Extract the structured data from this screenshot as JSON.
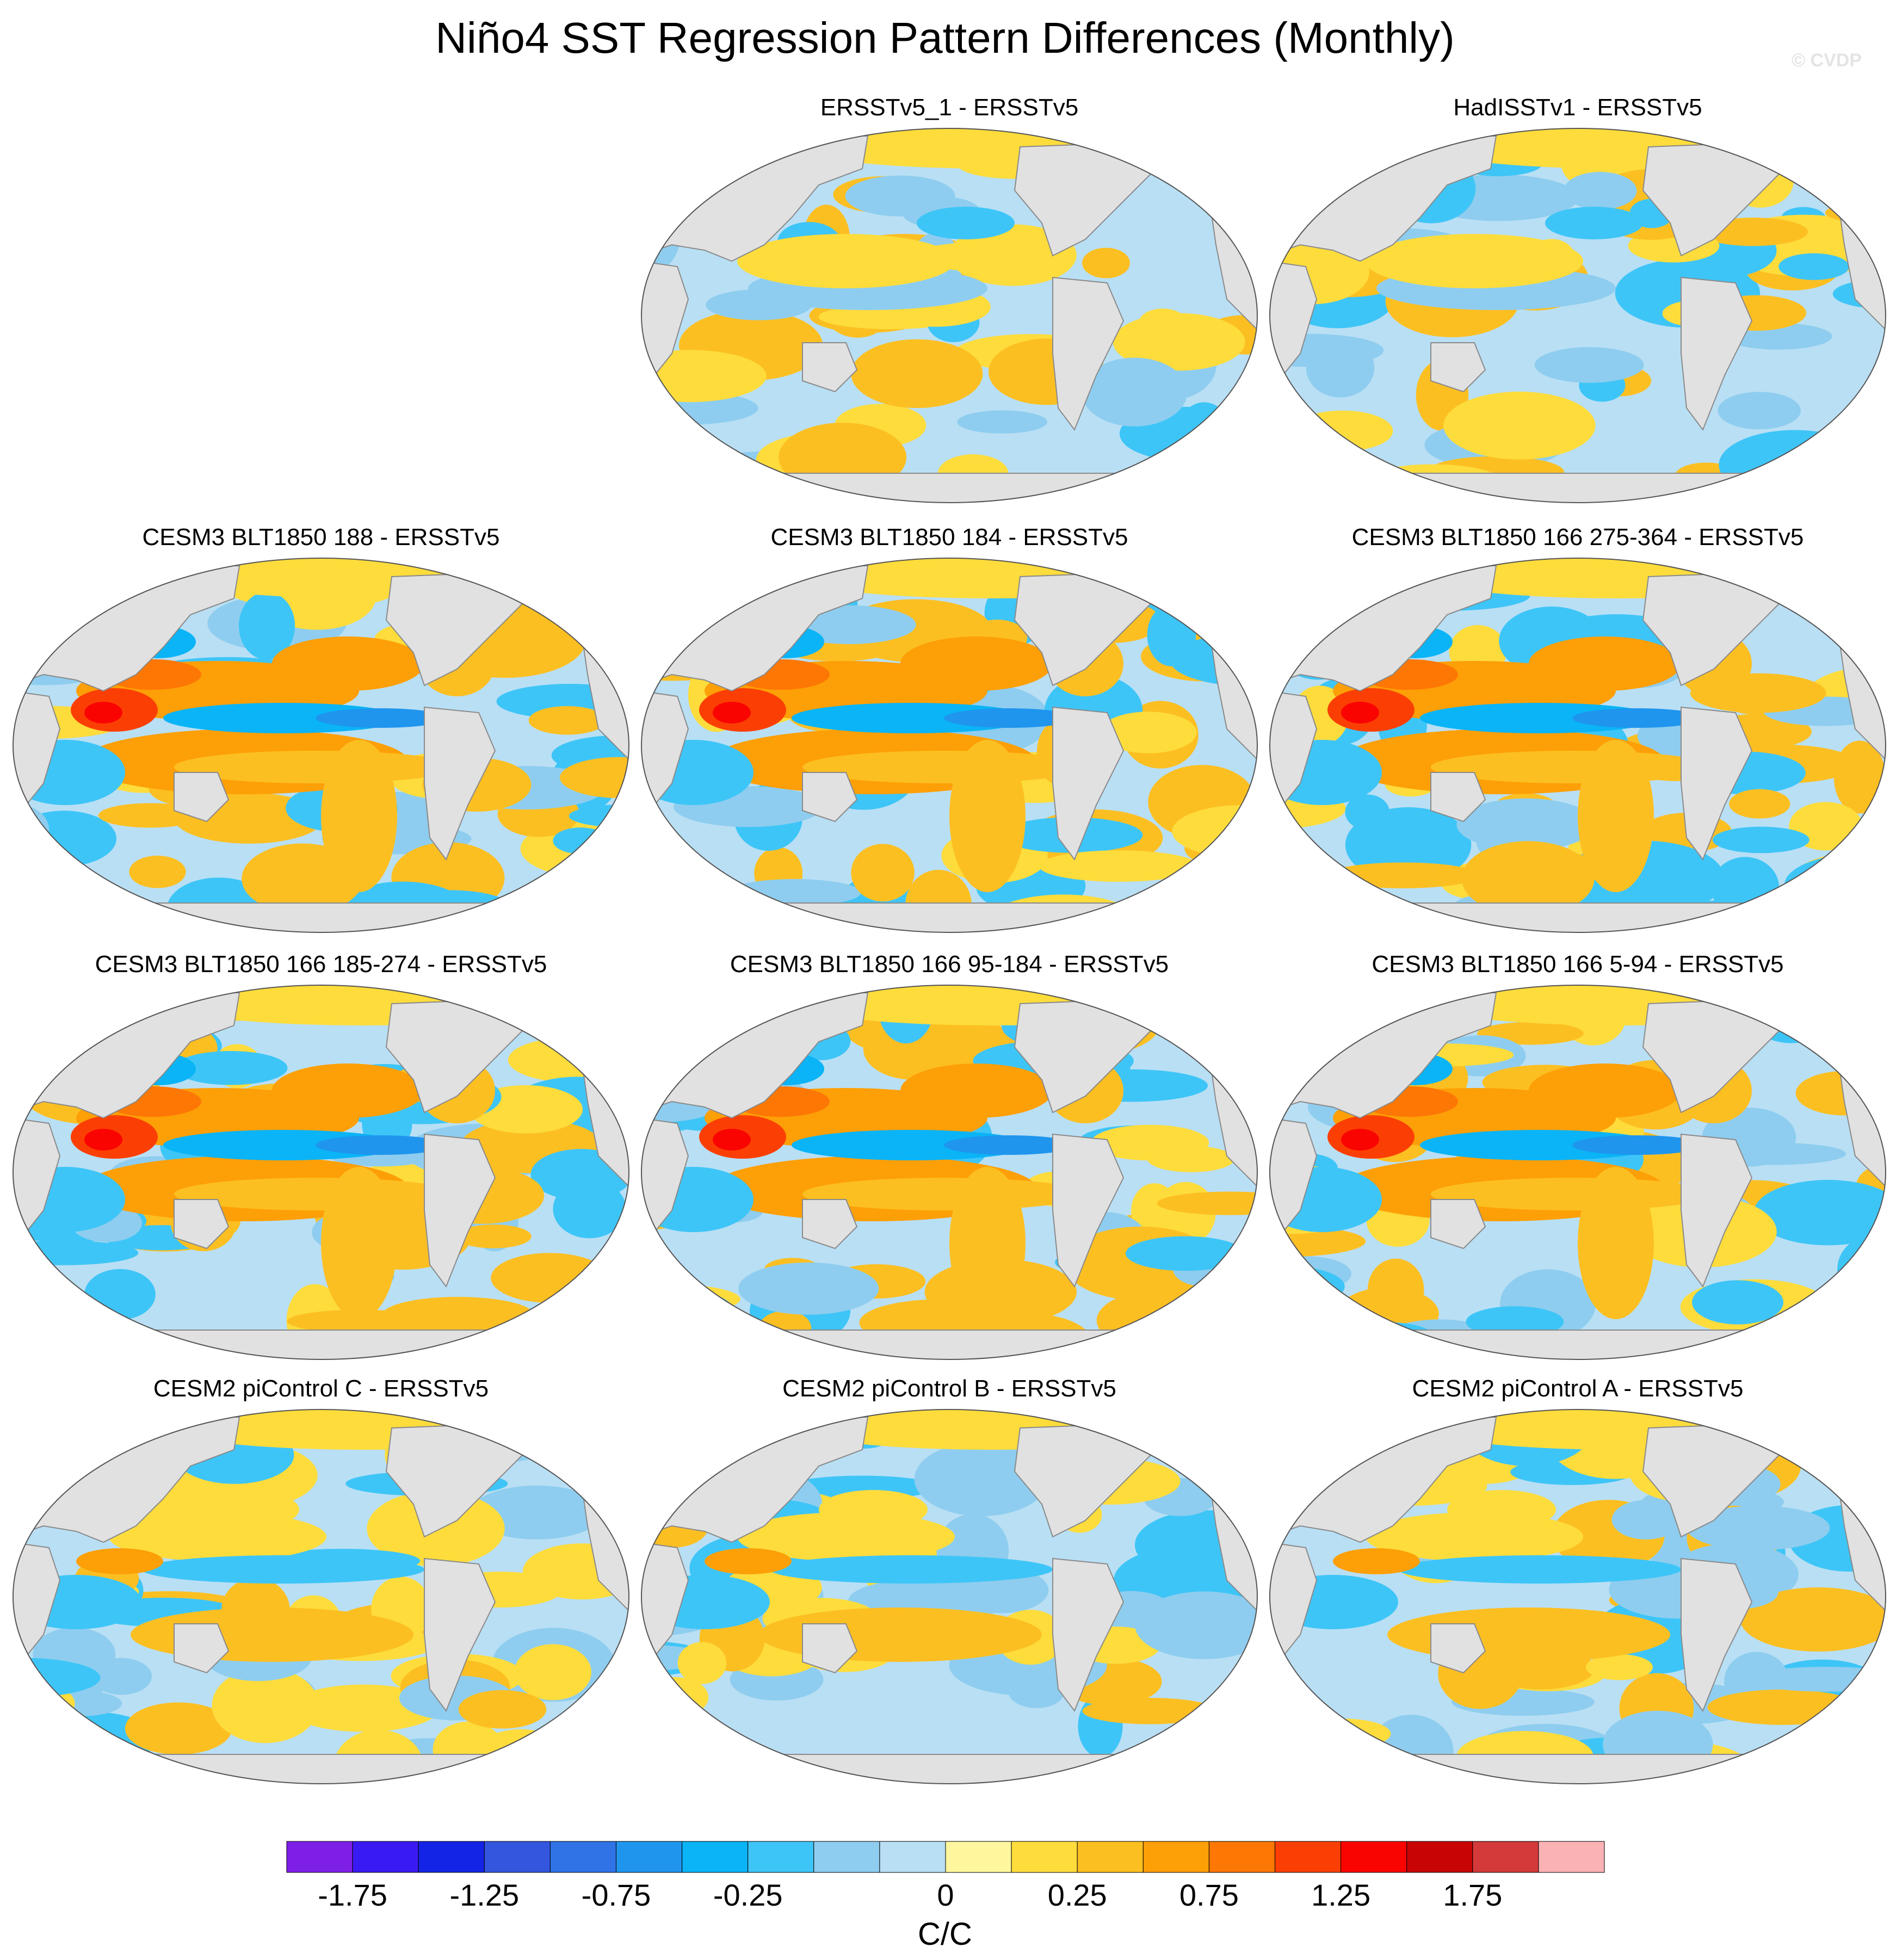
{
  "title": "Niño4 SST Regression Pattern Differences (Monthly)",
  "watermark": "© CVDP",
  "chart_data": {
    "type": "heatmap",
    "projection": "global map, Robinson-like",
    "panels": [
      {
        "title": "ERSSTv5_1 - ERSSTv5",
        "pattern": "weak"
      },
      {
        "title": "HadISSTv1 - ERSSTv5",
        "pattern": "weak"
      },
      {
        "title": "CESM3 BLT1850 188 - ERSSTv5",
        "pattern": "strong"
      },
      {
        "title": "CESM3 BLT1850 184 - ERSSTv5",
        "pattern": "strong"
      },
      {
        "title": "CESM3 BLT1850 166 275-364 - ERSSTv5",
        "pattern": "strong"
      },
      {
        "title": "CESM3 BLT1850 166 185-274 - ERSSTv5",
        "pattern": "strong"
      },
      {
        "title": "CESM3 BLT1850 166 95-184 - ERSSTv5",
        "pattern": "strong"
      },
      {
        "title": "CESM3 BLT1850 166 5-94 - ERSSTv5",
        "pattern": "strong"
      },
      {
        "title": "CESM2 piControl C - ERSSTv5",
        "pattern": "moderate"
      },
      {
        "title": "CESM2 piControl B - ERSSTv5",
        "pattern": "moderate"
      },
      {
        "title": "CESM2 piControl A - ERSSTv5",
        "pattern": "moderate"
      }
    ],
    "colorbar": {
      "label": "C/C",
      "tick_labels": [
        "-1.75",
        "-1.25",
        "-0.75",
        "-0.25",
        "0",
        "0.25",
        "0.75",
        "1.25",
        "1.75"
      ],
      "tick_values": [
        -1.75,
        -1.25,
        -0.75,
        -0.25,
        0,
        0.25,
        0.75,
        1.25,
        1.75
      ],
      "colors": [
        "#7e1fe8",
        "#3a1af2",
        "#1424e6",
        "#3456de",
        "#2f73e6",
        "#1f95ee",
        "#0ab4f6",
        "#3ec5f7",
        "#8ecdef",
        "#b9dff4",
        "#fff69d",
        "#fddc3c",
        "#fcbf22",
        "#fd9f06",
        "#fd7705",
        "#fb3f04",
        "#fa0401",
        "#c80504",
        "#d43a3a",
        "#fbb2b4"
      ]
    }
  }
}
